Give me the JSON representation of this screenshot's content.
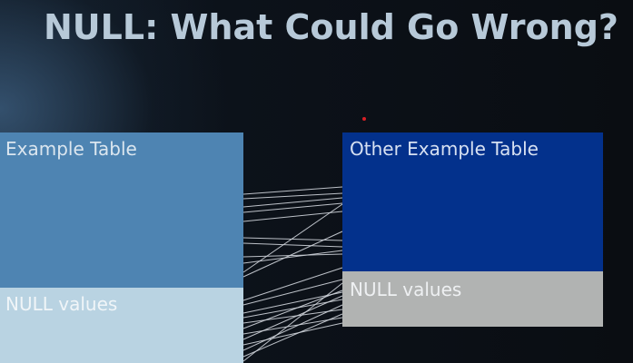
{
  "slide": {
    "title": "NULL: What Could Go Wrong?"
  },
  "left_table": {
    "label": "Example Table",
    "null_label": "NULL values",
    "color": "#4e84b2",
    "null_color": "#b9d3e2"
  },
  "right_table": {
    "label": "Other Example Table",
    "null_label": "NULL values",
    "color": "#03318c",
    "null_color": "#b1b3b2"
  },
  "pointer": {
    "color": "#d81f26"
  }
}
